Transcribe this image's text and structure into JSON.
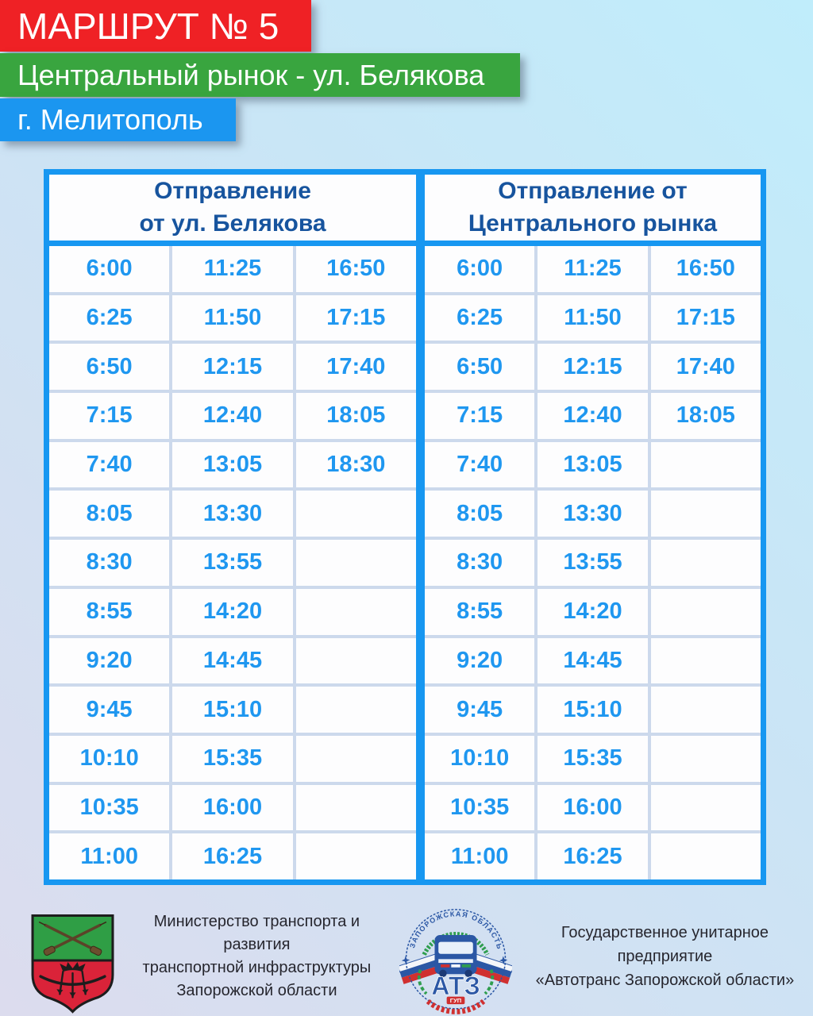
{
  "header": {
    "route_title": "МАРШРУТ № 5",
    "route_name": "Центральный рынок - ул. Белякова",
    "city": "г. Мелитополь"
  },
  "timetable": {
    "left": {
      "title": "Отправление\nот ул. Белякова",
      "rows": [
        [
          "6:00",
          "11:25",
          "16:50"
        ],
        [
          "6:25",
          "11:50",
          "17:15"
        ],
        [
          "6:50",
          "12:15",
          "17:40"
        ],
        [
          "7:15",
          "12:40",
          "18:05"
        ],
        [
          "7:40",
          "13:05",
          "18:30"
        ],
        [
          "8:05",
          "13:30",
          ""
        ],
        [
          "8:30",
          "13:55",
          ""
        ],
        [
          "8:55",
          "14:20",
          ""
        ],
        [
          "9:20",
          "14:45",
          ""
        ],
        [
          "9:45",
          "15:10",
          ""
        ],
        [
          "10:10",
          "15:35",
          ""
        ],
        [
          "10:35",
          "16:00",
          ""
        ],
        [
          "11:00",
          "16:25",
          ""
        ]
      ]
    },
    "right": {
      "title": "Отправление от\nЦентрального рынка",
      "rows": [
        [
          "6:00",
          "11:25",
          "16:50"
        ],
        [
          "6:25",
          "11:50",
          "17:15"
        ],
        [
          "6:50",
          "12:15",
          "17:40"
        ],
        [
          "7:15",
          "12:40",
          "18:05"
        ],
        [
          "7:40",
          "13:05",
          ""
        ],
        [
          "8:05",
          "13:30",
          ""
        ],
        [
          "8:30",
          "13:55",
          ""
        ],
        [
          "8:55",
          "14:20",
          ""
        ],
        [
          "9:20",
          "14:45",
          ""
        ],
        [
          "9:45",
          "15:10",
          ""
        ],
        [
          "10:10",
          "15:35",
          ""
        ],
        [
          "10:35",
          "16:00",
          ""
        ],
        [
          "11:00",
          "16:25",
          ""
        ]
      ]
    }
  },
  "footer": {
    "ministry_text": "Министерство транспорта и развития\nтранспортной инфраструктуры\nЗапорожской области",
    "company_text": "Государственное унитарное предприятие\n«Автотранс Запорожской области»",
    "atz_label": "АТЗ",
    "atz_sub": "ГУП",
    "atz_arc_text": "ЗАПОРОЖСКАЯ ОБЛАСТЬ"
  },
  "colors": {
    "banner_red": "#ef2125",
    "banner_green": "#39a53f",
    "banner_blue": "#1b96f0",
    "table_border": "#1797f1",
    "time_text": "#1f97f0",
    "header_text": "#17549e",
    "row_separator": "#ccd9ec"
  }
}
